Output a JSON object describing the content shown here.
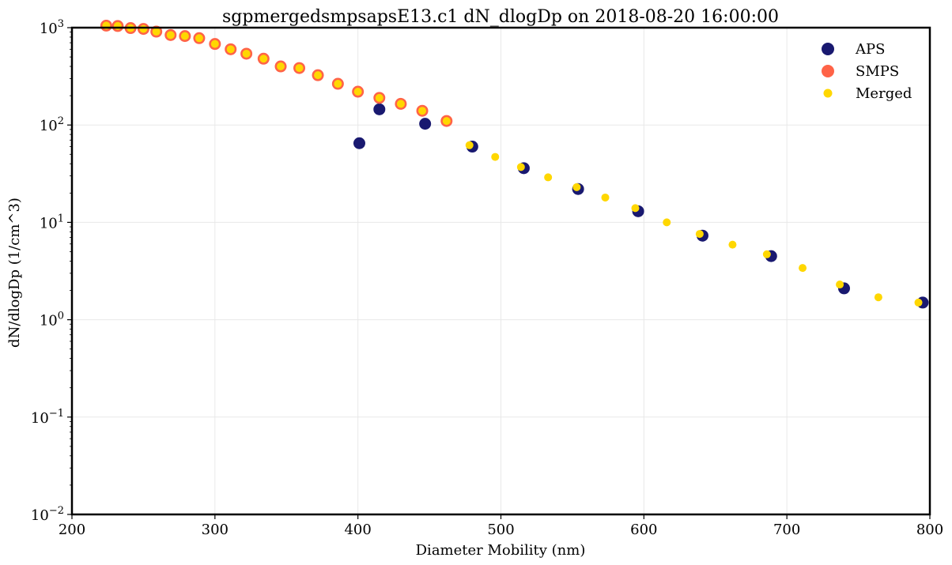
{
  "chart_data": {
    "type": "scatter",
    "title": "sgpmergedsmpsapsE13.c1 dN_dlogDp on 2018-08-20 16:00:00",
    "xlabel": "Diameter Mobility (nm)",
    "ylabel": "dN/dlogDp (1/cm^3)",
    "xlim": [
      200,
      800
    ],
    "ylim_exponents": [
      -2,
      3
    ],
    "yscale": "log",
    "grid": true,
    "legend_position": "top-right",
    "x_ticks": [
      200,
      300,
      400,
      500,
      600,
      700,
      800
    ],
    "x_tick_labels": [
      "200",
      "300",
      "400",
      "500",
      "600",
      "700",
      "800"
    ],
    "y_ticks": [
      {
        "base": "10",
        "exp": "−2",
        "value": 0.01
      },
      {
        "base": "10",
        "exp": "−1",
        "value": 0.1
      },
      {
        "base": "10",
        "exp": "0",
        "value": 1
      },
      {
        "base": "10",
        "exp": "1",
        "value": 10
      },
      {
        "base": "10",
        "exp": "2",
        "value": 100
      },
      {
        "base": "10",
        "exp": "3",
        "value": 1000
      }
    ],
    "series": [
      {
        "name": "APS",
        "color": "#191970",
        "x": [
          401,
          415,
          447,
          480,
          516,
          554,
          596,
          641,
          689,
          740,
          795
        ],
        "y": [
          65,
          145,
          103,
          60,
          36,
          22,
          13,
          7.3,
          4.5,
          2.1,
          1.5
        ]
      },
      {
        "name": "SMPS",
        "color": "#FF6347",
        "x": [
          224,
          232,
          241,
          250,
          259,
          269,
          279,
          289,
          300,
          311,
          322,
          334,
          346,
          359,
          372,
          386,
          400,
          415,
          430,
          445,
          462
        ],
        "y": [
          1050,
          1040,
          990,
          970,
          910,
          840,
          820,
          780,
          680,
          600,
          540,
          480,
          400,
          385,
          325,
          265,
          220,
          190,
          165,
          140,
          110
        ]
      },
      {
        "name": "Merged",
        "color": "#FFD700",
        "x": [
          224,
          232,
          241,
          250,
          259,
          269,
          279,
          289,
          300,
          311,
          322,
          334,
          346,
          359,
          372,
          386,
          400,
          415,
          430,
          445,
          462,
          478,
          496,
          514,
          533,
          553,
          573,
          594,
          616,
          639,
          662,
          686,
          711,
          737,
          764,
          792
        ],
        "y": [
          1050,
          1040,
          990,
          970,
          910,
          840,
          820,
          780,
          680,
          600,
          540,
          480,
          400,
          385,
          325,
          265,
          220,
          190,
          165,
          140,
          110,
          62,
          47,
          37,
          29,
          23,
          18,
          14,
          10,
          7.6,
          5.9,
          4.7,
          3.4,
          2.3,
          1.7,
          1.5
        ]
      }
    ]
  }
}
